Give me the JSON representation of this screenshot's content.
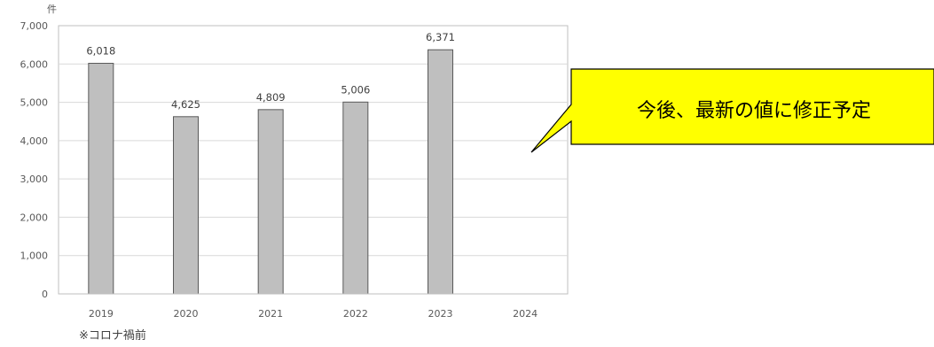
{
  "chart_data": {
    "type": "bar",
    "categories": [
      "2019",
      "2020",
      "2021",
      "2022",
      "2023",
      "2024"
    ],
    "values": [
      6018,
      4625,
      4809,
      5006,
      6371,
      null
    ],
    "data_labels": [
      "6,018",
      "4,625",
      "4,809",
      "5,006",
      "6,371",
      ""
    ],
    "y_ticks": [
      "0",
      "1,000",
      "2,000",
      "3,000",
      "4,000",
      "5,000",
      "6,000",
      "7,000"
    ],
    "ylim": [
      0,
      7000
    ],
    "ylabel": "件",
    "grid": true,
    "bar_color": "#bfbfbf",
    "bar_edge_color": "#595959",
    "footnote": "※コロナ禍前"
  },
  "callout": {
    "text": "今後、最新の値に修正予定",
    "fill_color": "#ffff00"
  }
}
